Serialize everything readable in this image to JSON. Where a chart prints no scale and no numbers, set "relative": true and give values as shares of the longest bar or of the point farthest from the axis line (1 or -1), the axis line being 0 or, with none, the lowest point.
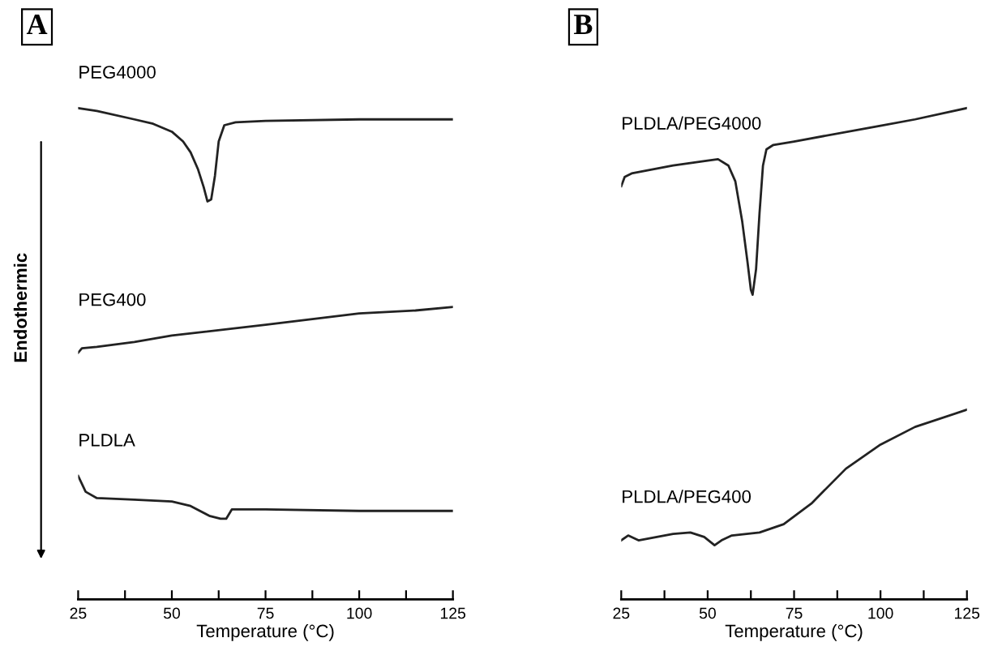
{
  "chart_data": [
    {
      "type": "line",
      "title": "A",
      "xlabel": "Temperature (°C)",
      "ylabel": "Endothermic",
      "relative": true,
      "tick_labels": "x",
      "xlim": [
        25,
        125
      ],
      "xticks": [
        25,
        {
          "value": 37.5,
          "label": null
        },
        50,
        {
          "value": 62.5,
          "label": null
        },
        75,
        {
          "value": 87.5,
          "label": null
        },
        100,
        {
          "value": 112.5,
          "label": null
        },
        125
      ],
      "series": [
        {
          "name": "PEG4000",
          "color": "#222222",
          "x": [
            25,
            30,
            40,
            45,
            50,
            53,
            55,
            57,
            58.5,
            59.5,
            60.5,
            61.5,
            62.5,
            64,
            67,
            75,
            100,
            125
          ],
          "values": [
            1.0,
            0.994,
            0.977,
            0.968,
            0.952,
            0.932,
            0.91,
            0.875,
            0.839,
            0.81,
            0.814,
            0.862,
            0.932,
            0.965,
            0.971,
            0.974,
            0.977,
            0.977
          ]
        },
        {
          "name": "PEG400",
          "color": "#222222",
          "x": [
            25,
            26,
            30,
            40,
            50,
            75,
            100,
            115,
            125
          ],
          "values": [
            0.502,
            0.511,
            0.514,
            0.524,
            0.537,
            0.559,
            0.582,
            0.588,
            0.595
          ]
        },
        {
          "name": "PLDLA",
          "color": "#222222",
          "x": [
            25,
            27,
            30,
            40,
            50,
            55,
            60,
            63,
            64.5,
            66,
            75,
            100,
            125
          ],
          "values": [
            0.251,
            0.219,
            0.206,
            0.203,
            0.199,
            0.19,
            0.17,
            0.164,
            0.164,
            0.183,
            0.183,
            0.18,
            0.18
          ]
        }
      ]
    },
    {
      "type": "line",
      "title": "B",
      "xlabel": "Temperature (°C)",
      "relative": true,
      "tick_labels": "x",
      "xlim": [
        25,
        125
      ],
      "xticks": [
        25,
        {
          "value": 37.5,
          "label": null
        },
        50,
        {
          "value": 62.5,
          "label": null
        },
        75,
        {
          "value": 87.5,
          "label": null
        },
        100,
        {
          "value": 112.5,
          "label": null
        },
        125
      ],
      "series": [
        {
          "name": "PLDLA/PEG4000",
          "color": "#222222",
          "x": [
            25,
            26,
            28,
            40,
            50,
            53,
            56,
            58,
            60,
            61.5,
            62.5,
            63,
            64,
            65,
            66,
            67,
            69,
            75,
            100,
            110,
            125
          ],
          "values": [
            0.841,
            0.86,
            0.867,
            0.883,
            0.893,
            0.896,
            0.883,
            0.851,
            0.769,
            0.688,
            0.63,
            0.62,
            0.672,
            0.786,
            0.883,
            0.916,
            0.925,
            0.932,
            0.964,
            0.977,
            1.0
          ]
        },
        {
          "name": "PLDLA/PEG400",
          "color": "#222222",
          "x": [
            25,
            27,
            30,
            40,
            45,
            49,
            52,
            54,
            57,
            65,
            72,
            80,
            90,
            100,
            110,
            125
          ],
          "values": [
            0.12,
            0.13,
            0.12,
            0.133,
            0.136,
            0.127,
            0.11,
            0.12,
            0.13,
            0.136,
            0.153,
            0.195,
            0.266,
            0.315,
            0.351,
            0.386
          ]
        }
      ]
    }
  ]
}
